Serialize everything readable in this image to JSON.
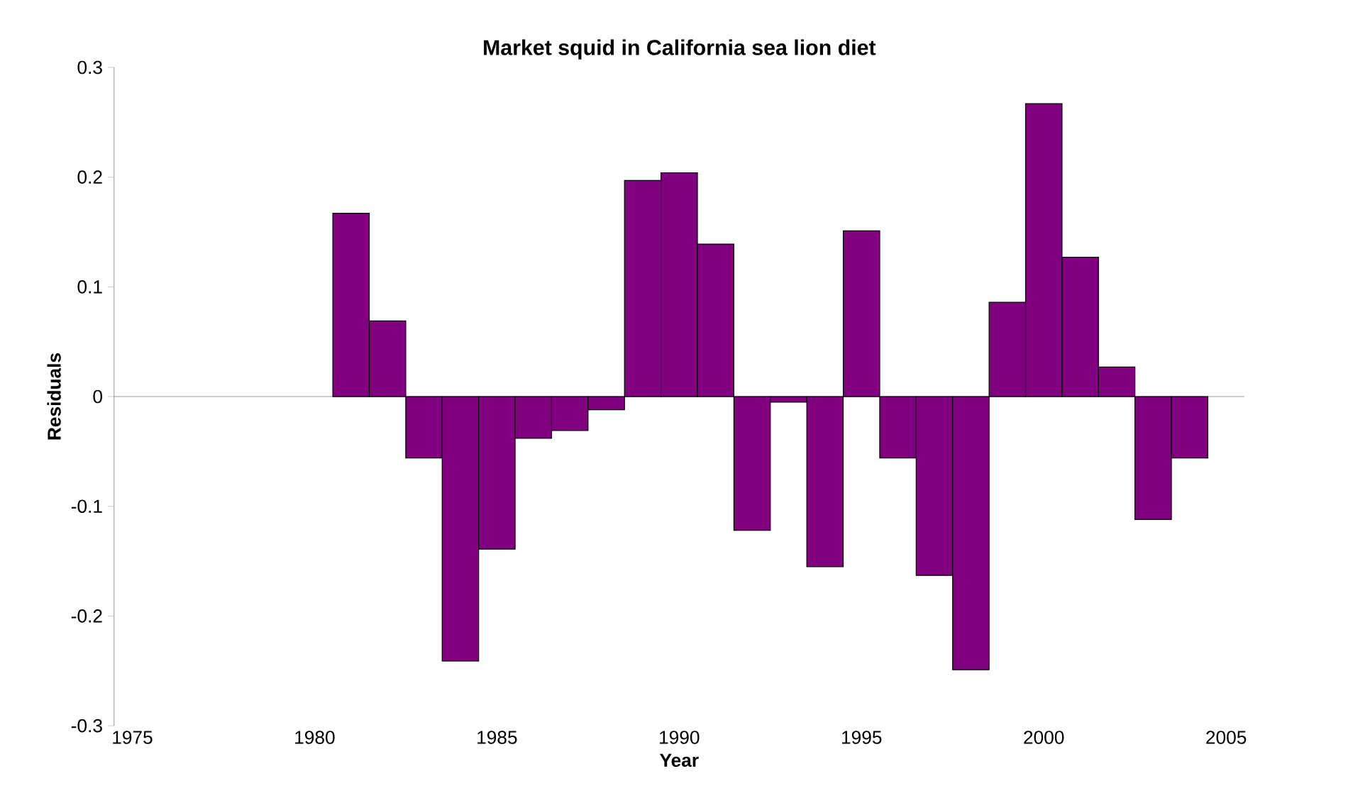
{
  "chart_data": {
    "type": "bar",
    "title": "Market squid in California sea lion diet",
    "xlabel": "Year",
    "ylabel": "Residuals",
    "x": [
      1981,
      1982,
      1983,
      1984,
      1985,
      1986,
      1987,
      1988,
      1989,
      1990,
      1991,
      1992,
      1993,
      1994,
      1995,
      1996,
      1997,
      1998,
      1999,
      2000,
      2001,
      2002,
      2003,
      2004
    ],
    "values": [
      0.167,
      0.069,
      -0.056,
      -0.241,
      -0.139,
      -0.038,
      -0.031,
      -0.012,
      0.197,
      0.204,
      0.139,
      -0.122,
      -0.005,
      -0.155,
      0.151,
      -0.056,
      -0.163,
      -0.249,
      0.086,
      0.267,
      0.127,
      0.027,
      -0.112,
      -0.056
    ],
    "color": "#800080",
    "xlim": [
      1974.5,
      2005.5
    ],
    "xticks": [
      1975,
      1980,
      1985,
      1990,
      1995,
      2000,
      2005
    ],
    "ylim": [
      -0.3,
      0.3
    ],
    "yticks": [
      -0.3,
      -0.2,
      -0.1,
      0,
      0.1,
      0.2,
      0.3
    ],
    "ref_lines": [
      {
        "axis": "y",
        "value": 0,
        "color": "#808080"
      }
    ]
  }
}
